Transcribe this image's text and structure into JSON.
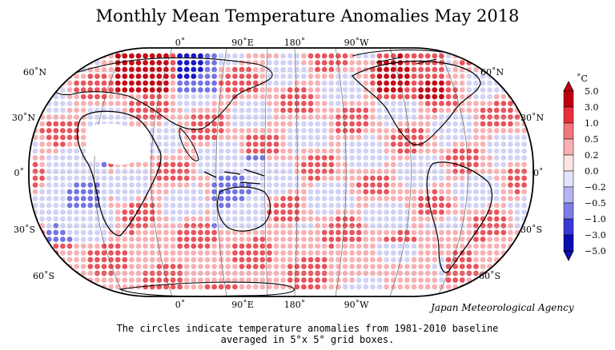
{
  "title": "Monthly Mean Temperature Anomalies May 2018",
  "top_longitude_labels": [
    "0˚",
    "90˚E",
    "180˚",
    "90˚W"
  ],
  "bottom_longitude_labels": [
    "0˚",
    "90˚E",
    "180˚",
    "90˚W"
  ],
  "left_latitude_labels": [
    "60˚N",
    "30˚N",
    "0˚",
    "30˚S",
    "60˚S"
  ],
  "right_latitude_labels": [
    "60˚N",
    "30˚N",
    "0˚",
    "30˚S",
    "60˚S"
  ],
  "legend": {
    "unit": "˚C",
    "ticks": [
      "5.0",
      "3.0",
      "1.0",
      "0.5",
      "0.2",
      "0.0",
      "−0.2",
      "−0.5",
      "−1.0",
      "−3.0",
      "−5.0"
    ],
    "colors": [
      "#c00010",
      "#e8303a",
      "#f3777c",
      "#f9b1b3",
      "#fde4e4",
      "#ffffff",
      "#e3e3fb",
      "#b5b5f2",
      "#7d7de6",
      "#3838d6",
      "#0c0cb0"
    ]
  },
  "agency": "Japan Meteorological Agency",
  "caption_line1": "The circles indicate temperature anomalies from 1981-2010 baseline",
  "caption_line2": "averaged in 5°x 5° grid boxes.",
  "colors": {
    "warm_strong": "#c40a16",
    "warm": "#e9545c",
    "warm_light": "#f7b1b4",
    "cool_light": "#d2d2f6",
    "cool": "#7474e4",
    "cool_strong": "#1818c4"
  }
}
